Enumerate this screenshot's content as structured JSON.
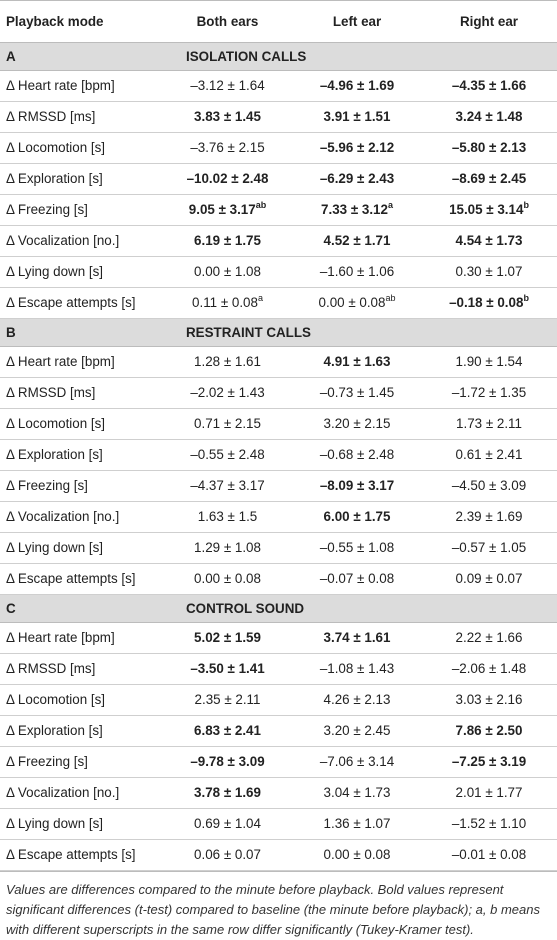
{
  "header": [
    "Playback mode",
    "Both ears",
    "Left ear",
    "Right ear"
  ],
  "sections": [
    {
      "letter": "A",
      "title": "ISOLATION CALLS",
      "rows": [
        {
          "label": "Δ Heart rate [bpm]",
          "cells": [
            {
              "v": "–3.12 ± 1.64",
              "b": false,
              "s": ""
            },
            {
              "v": "–4.96 ± 1.69",
              "b": true,
              "s": ""
            },
            {
              "v": "–4.35 ± 1.66",
              "b": true,
              "s": ""
            }
          ]
        },
        {
          "label": "Δ RMSSD [ms]",
          "cells": [
            {
              "v": "3.83 ± 1.45",
              "b": true,
              "s": ""
            },
            {
              "v": "3.91 ± 1.51",
              "b": true,
              "s": ""
            },
            {
              "v": "3.24 ± 1.48",
              "b": true,
              "s": ""
            }
          ]
        },
        {
          "label": "Δ Locomotion [s]",
          "cells": [
            {
              "v": "–3.76 ± 2.15",
              "b": false,
              "s": ""
            },
            {
              "v": "–5.96 ± 2.12",
              "b": true,
              "s": ""
            },
            {
              "v": "–5.80 ± 2.13",
              "b": true,
              "s": ""
            }
          ]
        },
        {
          "label": "Δ Exploration [s]",
          "cells": [
            {
              "v": "–10.02 ± 2.48",
              "b": true,
              "s": ""
            },
            {
              "v": "–6.29 ± 2.43",
              "b": true,
              "s": ""
            },
            {
              "v": "–8.69 ± 2.45",
              "b": true,
              "s": ""
            }
          ]
        },
        {
          "label": "Δ Freezing [s]",
          "cells": [
            {
              "v": "9.05 ± 3.17",
              "b": true,
              "s": "ab"
            },
            {
              "v": "7.33 ± 3.12",
              "b": true,
              "s": "a"
            },
            {
              "v": "15.05 ± 3.14",
              "b": true,
              "s": "b"
            }
          ]
        },
        {
          "label": "Δ Vocalization [no.]",
          "cells": [
            {
              "v": "6.19 ± 1.75",
              "b": true,
              "s": ""
            },
            {
              "v": "4.52 ± 1.71",
              "b": true,
              "s": ""
            },
            {
              "v": "4.54 ± 1.73",
              "b": true,
              "s": ""
            }
          ]
        },
        {
          "label": "Δ Lying down [s]",
          "cells": [
            {
              "v": "0.00 ± 1.08",
              "b": false,
              "s": ""
            },
            {
              "v": "–1.60 ± 1.06",
              "b": false,
              "s": ""
            },
            {
              "v": "0.30 ± 1.07",
              "b": false,
              "s": ""
            }
          ]
        },
        {
          "label": "Δ Escape attempts [s]",
          "cells": [
            {
              "v": "0.11 ± 0.08",
              "b": false,
              "s": "a"
            },
            {
              "v": "0.00 ± 0.08",
              "b": false,
              "s": "ab"
            },
            {
              "v": "–0.18 ± 0.08",
              "b": true,
              "s": "b"
            }
          ]
        }
      ]
    },
    {
      "letter": "B",
      "title": "RESTRAINT CALLS",
      "rows": [
        {
          "label": "Δ Heart rate [bpm]",
          "cells": [
            {
              "v": "1.28 ± 1.61",
              "b": false,
              "s": ""
            },
            {
              "v": "4.91 ± 1.63",
              "b": true,
              "s": ""
            },
            {
              "v": "1.90 ± 1.54",
              "b": false,
              "s": ""
            }
          ]
        },
        {
          "label": "Δ RMSSD [ms]",
          "cells": [
            {
              "v": "–2.02 ± 1.43",
              "b": false,
              "s": ""
            },
            {
              "v": "–0.73 ± 1.45",
              "b": false,
              "s": ""
            },
            {
              "v": "–1.72 ± 1.35",
              "b": false,
              "s": ""
            }
          ]
        },
        {
          "label": "Δ Locomotion [s]",
          "cells": [
            {
              "v": "0.71 ± 2.15",
              "b": false,
              "s": ""
            },
            {
              "v": "3.20 ± 2.15",
              "b": false,
              "s": ""
            },
            {
              "v": "1.73 ± 2.11",
              "b": false,
              "s": ""
            }
          ]
        },
        {
          "label": "Δ Exploration [s]",
          "cells": [
            {
              "v": "–0.55 ± 2.48",
              "b": false,
              "s": ""
            },
            {
              "v": "–0.68 ± 2.48",
              "b": false,
              "s": ""
            },
            {
              "v": "0.61 ± 2.41",
              "b": false,
              "s": ""
            }
          ]
        },
        {
          "label": "Δ Freezing [s]",
          "cells": [
            {
              "v": "–4.37 ± 3.17",
              "b": false,
              "s": ""
            },
            {
              "v": "–8.09 ± 3.17",
              "b": true,
              "s": ""
            },
            {
              "v": "–4.50 ± 3.09",
              "b": false,
              "s": ""
            }
          ]
        },
        {
          "label": "Δ Vocalization [no.]",
          "cells": [
            {
              "v": "1.63 ± 1.5",
              "b": false,
              "s": ""
            },
            {
              "v": "6.00 ± 1.75",
              "b": true,
              "s": ""
            },
            {
              "v": "2.39 ± 1.69",
              "b": false,
              "s": ""
            }
          ]
        },
        {
          "label": "Δ Lying down [s]",
          "cells": [
            {
              "v": "1.29 ± 1.08",
              "b": false,
              "s": ""
            },
            {
              "v": "–0.55 ± 1.08",
              "b": false,
              "s": ""
            },
            {
              "v": "–0.57 ± 1.05",
              "b": false,
              "s": ""
            }
          ]
        },
        {
          "label": "Δ Escape attempts [s]",
          "cells": [
            {
              "v": "0.00 ± 0.08",
              "b": false,
              "s": ""
            },
            {
              "v": "–0.07 ± 0.08",
              "b": false,
              "s": ""
            },
            {
              "v": "0.09 ± 0.07",
              "b": false,
              "s": ""
            }
          ]
        }
      ]
    },
    {
      "letter": "C",
      "title": "CONTROL SOUND",
      "rows": [
        {
          "label": "Δ Heart rate [bpm]",
          "cells": [
            {
              "v": "5.02 ± 1.59",
              "b": true,
              "s": ""
            },
            {
              "v": "3.74 ± 1.61",
              "b": true,
              "s": ""
            },
            {
              "v": "2.22 ± 1.66",
              "b": false,
              "s": ""
            }
          ]
        },
        {
          "label": "Δ RMSSD [ms]",
          "cells": [
            {
              "v": "–3.50 ± 1.41",
              "b": true,
              "s": ""
            },
            {
              "v": "–1.08 ± 1.43",
              "b": false,
              "s": ""
            },
            {
              "v": "–2.06 ± 1.48",
              "b": false,
              "s": ""
            }
          ]
        },
        {
          "label": "Δ Locomotion [s]",
          "cells": [
            {
              "v": "2.35 ± 2.11",
              "b": false,
              "s": ""
            },
            {
              "v": "4.26 ± 2.13",
              "b": false,
              "s": ""
            },
            {
              "v": "3.03 ± 2.16",
              "b": false,
              "s": ""
            }
          ]
        },
        {
          "label": "Δ Exploration [s]",
          "cells": [
            {
              "v": "6.83 ± 2.41",
              "b": true,
              "s": ""
            },
            {
              "v": "3.20 ± 2.45",
              "b": false,
              "s": ""
            },
            {
              "v": "7.86 ± 2.50",
              "b": true,
              "s": ""
            }
          ]
        },
        {
          "label": "Δ Freezing [s]",
          "cells": [
            {
              "v": "–9.78 ± 3.09",
              "b": true,
              "s": ""
            },
            {
              "v": "–7.06 ± 3.14",
              "b": false,
              "s": ""
            },
            {
              "v": "–7.25 ± 3.19",
              "b": true,
              "s": ""
            }
          ]
        },
        {
          "label": "Δ Vocalization [no.]",
          "cells": [
            {
              "v": "3.78 ± 1.69",
              "b": true,
              "s": ""
            },
            {
              "v": "3.04 ± 1.73",
              "b": false,
              "s": ""
            },
            {
              "v": "2.01 ± 1.77",
              "b": false,
              "s": ""
            }
          ]
        },
        {
          "label": "Δ Lying down [s]",
          "cells": [
            {
              "v": "0.69 ± 1.04",
              "b": false,
              "s": ""
            },
            {
              "v": "1.36 ± 1.07",
              "b": false,
              "s": ""
            },
            {
              "v": "–1.52 ± 1.10",
              "b": false,
              "s": ""
            }
          ]
        },
        {
          "label": "Δ Escape attempts [s]",
          "cells": [
            {
              "v": "0.06 ± 0.07",
              "b": false,
              "s": ""
            },
            {
              "v": "0.00 ± 0.08",
              "b": false,
              "s": ""
            },
            {
              "v": "–0.01 ± 0.08",
              "b": false,
              "s": ""
            }
          ]
        }
      ]
    }
  ],
  "footnote": "Values are differences compared to the minute before playback. Bold values represent significant differences (t-test) compared to baseline (the minute before playback); a, b means with different superscripts in the same row differ significantly (Tukey-Kramer test)."
}
